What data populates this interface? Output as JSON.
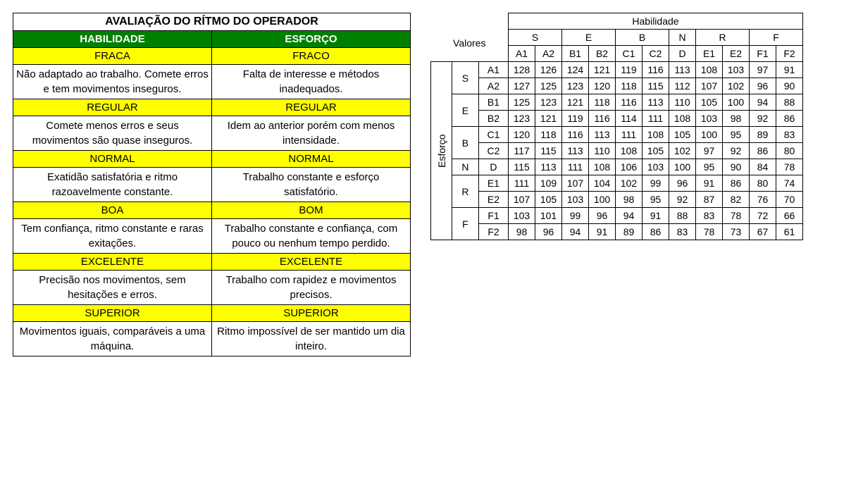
{
  "colors": {
    "header_bg": "#008000",
    "header_fg": "#ffffff",
    "level_bg": "#ffff00",
    "border": "#000000",
    "bg": "#ffffff"
  },
  "left": {
    "title": "AVALIAÇÃO DO RÍTMO DO OPERADOR",
    "headers": {
      "habilidade": "HABILIDADE",
      "esforco": "ESFORÇO"
    },
    "rows": [
      {
        "level": {
          "habilidade": "FRACA",
          "esforco": "FRACO"
        },
        "desc": {
          "habilidade": "Não adaptado ao trabalho. Comete erros e tem movimentos inseguros.",
          "esforco": "Falta de interesse e métodos inadequados."
        }
      },
      {
        "level": {
          "habilidade": "REGULAR",
          "esforco": "REGULAR"
        },
        "desc": {
          "habilidade": "Comete menos erros e seus movimentos são quase inseguros.",
          "esforco": "Idem ao anterior porém com menos intensidade."
        }
      },
      {
        "level": {
          "habilidade": "NORMAL",
          "esforco": "NORMAL"
        },
        "desc": {
          "habilidade": "Exatidão satisfatória e ritmo razoavelmente constante.",
          "esforco": "Trabalho constante e esforço satisfatório."
        }
      },
      {
        "level": {
          "habilidade": "BOA",
          "esforco": "BOM"
        },
        "desc": {
          "habilidade": "Tem confiança, ritmo constante e raras exitações.",
          "esforco": "Trabalho constante e confiança, com pouco ou nenhum tempo perdido."
        }
      },
      {
        "level": {
          "habilidade": "EXCELENTE",
          "esforco": "EXCELENTE"
        },
        "desc": {
          "habilidade": "Precisão nos movimentos, sem hesitações e erros.",
          "esforco": "Trabalho com rapidez e movimentos precisos."
        }
      },
      {
        "level": {
          "habilidade": "SUPERIOR",
          "esforco": "SUPERIOR"
        },
        "desc": {
          "habilidade": "Movimentos iguais, comparáveis a uma máquina.",
          "esforco": "Ritmo impossível de ser mantido um dia inteiro."
        }
      }
    ]
  },
  "right": {
    "corner_label": "Valores",
    "col_axis_label": "Habilidade",
    "row_axis_label": "Esforço",
    "col_groups": [
      {
        "label": "S",
        "subs": [
          "A1",
          "A2"
        ]
      },
      {
        "label": "E",
        "subs": [
          "B1",
          "B2"
        ]
      },
      {
        "label": "B",
        "subs": [
          "C1",
          "C2"
        ]
      },
      {
        "label": "N",
        "subs": [
          "D"
        ]
      },
      {
        "label": "R",
        "subs": [
          "E1",
          "E2"
        ]
      },
      {
        "label": "F",
        "subs": [
          "F1",
          "F2"
        ]
      }
    ],
    "row_groups": [
      {
        "label": "S",
        "subs": [
          "A1",
          "A2"
        ]
      },
      {
        "label": "E",
        "subs": [
          "B1",
          "B2"
        ]
      },
      {
        "label": "B",
        "subs": [
          "C1",
          "C2"
        ]
      },
      {
        "label": "N",
        "subs": [
          "D"
        ]
      },
      {
        "label": "R",
        "subs": [
          "E1",
          "E2"
        ]
      },
      {
        "label": "F",
        "subs": [
          "F1",
          "F2"
        ]
      }
    ],
    "values": [
      [
        128,
        126,
        124,
        121,
        119,
        116,
        113,
        108,
        103,
        97,
        91
      ],
      [
        127,
        125,
        123,
        120,
        118,
        115,
        112,
        107,
        102,
        96,
        90
      ],
      [
        125,
        123,
        121,
        118,
        116,
        113,
        110,
        105,
        100,
        94,
        88
      ],
      [
        123,
        121,
        119,
        116,
        114,
        111,
        108,
        103,
        98,
        92,
        86
      ],
      [
        120,
        118,
        116,
        113,
        111,
        108,
        105,
        100,
        95,
        89,
        83
      ],
      [
        117,
        115,
        113,
        110,
        108,
        105,
        102,
        97,
        92,
        86,
        80
      ],
      [
        115,
        113,
        111,
        108,
        106,
        103,
        100,
        95,
        90,
        84,
        78
      ],
      [
        111,
        109,
        107,
        104,
        102,
        99,
        96,
        91,
        86,
        80,
        74
      ],
      [
        107,
        105,
        103,
        100,
        98,
        95,
        92,
        87,
        82,
        76,
        70
      ],
      [
        103,
        101,
        99,
        96,
        94,
        91,
        88,
        83,
        78,
        72,
        66
      ],
      [
        98,
        96,
        94,
        91,
        89,
        86,
        83,
        78,
        73,
        67,
        61
      ]
    ]
  }
}
